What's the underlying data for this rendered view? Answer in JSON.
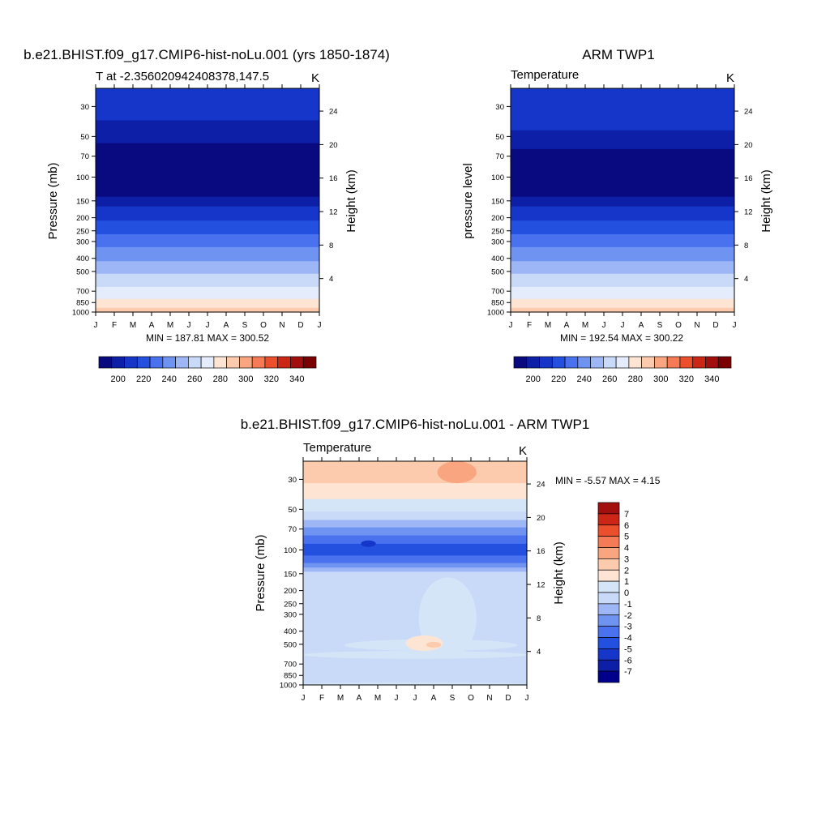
{
  "panels": [
    {
      "title": "b.e21.BHIST.f09_g17.CMIP6-hist-noLu.001 (yrs 1850-1874)",
      "left_label": "T at -2.356020942408378,147.5",
      "right_label": "K",
      "ylabel_left": "Pressure (mb)",
      "ylabel_right": "Height (km)",
      "minmax": "MIN = 187.81 MAX = 300.52",
      "colorbar_ticks": [
        "200",
        "220",
        "240",
        "260",
        "280",
        "300",
        "320",
        "340"
      ]
    },
    {
      "title": "ARM TWP1",
      "left_label": "Temperature",
      "right_label": "K",
      "ylabel_left": "pressure level",
      "ylabel_right": "Height (km)",
      "minmax": "MIN = 192.54 MAX = 300.22",
      "colorbar_ticks": [
        "200",
        "220",
        "240",
        "260",
        "280",
        "300",
        "320",
        "340"
      ]
    },
    {
      "title": "b.e21.BHIST.f09_g17.CMIP6-hist-noLu.001 - ARM TWP1",
      "left_label": "Temperature",
      "right_label": "K",
      "ylabel_left": "Pressure (mb)",
      "ylabel_right": "Height (km)",
      "minmax": "MIN =  -5.57 MAX =   4.15",
      "colorbar_ticks": [
        "7",
        "6",
        "5",
        "4",
        "3",
        "2",
        "1",
        "0",
        "-1",
        "-2",
        "-3",
        "-4",
        "-5",
        "-6",
        "-7"
      ]
    }
  ],
  "chart_data": [
    {
      "type": "heatmap",
      "x": [
        "J",
        "F",
        "M",
        "A",
        "M",
        "J",
        "J",
        "A",
        "S",
        "O",
        "N",
        "D",
        "J"
      ],
      "pressure_ticks": [
        "30",
        "50",
        "70",
        "100",
        "150",
        "200",
        "250",
        "300",
        "400",
        "500",
        "700",
        "850",
        "1000"
      ],
      "height_ticks": [
        "24",
        "20",
        "16",
        "12",
        "8",
        "4"
      ],
      "ylim": [
        1000,
        22
      ],
      "field": "temperature",
      "units": "K",
      "min": 187.81,
      "max": 300.52,
      "bands_top_to_bottom": [
        {
          "p_top": 22,
          "p_bottom": 38,
          "value": 215
        },
        {
          "p_top": 38,
          "p_bottom": 56,
          "value": 205
        },
        {
          "p_top": 56,
          "p_bottom": 140,
          "value": 192
        },
        {
          "p_top": 140,
          "p_bottom": 165,
          "value": 205
        },
        {
          "p_top": 165,
          "p_bottom": 210,
          "value": 215
        },
        {
          "p_top": 210,
          "p_bottom": 265,
          "value": 225
        },
        {
          "p_top": 265,
          "p_bottom": 330,
          "value": 235
        },
        {
          "p_top": 330,
          "p_bottom": 420,
          "value": 245
        },
        {
          "p_top": 420,
          "p_bottom": 520,
          "value": 255
        },
        {
          "p_top": 520,
          "p_bottom": 650,
          "value": 265
        },
        {
          "p_top": 650,
          "p_bottom": 800,
          "value": 275
        },
        {
          "p_top": 800,
          "p_bottom": 930,
          "value": 285
        },
        {
          "p_top": 930,
          "p_bottom": 1000,
          "value": 295
        }
      ]
    },
    {
      "type": "heatmap",
      "x": [
        "J",
        "F",
        "M",
        "A",
        "M",
        "J",
        "J",
        "A",
        "S",
        "O",
        "N",
        "D",
        "J"
      ],
      "pressure_ticks": [
        "30",
        "50",
        "70",
        "100",
        "150",
        "200",
        "250",
        "300",
        "400",
        "500",
        "700",
        "850",
        "1000"
      ],
      "height_ticks": [
        "24",
        "20",
        "16",
        "12",
        "8",
        "4"
      ],
      "ylim": [
        1000,
        22
      ],
      "field": "temperature",
      "units": "K",
      "min": 192.54,
      "max": 300.22,
      "bands_top_to_bottom": [
        {
          "p_top": 22,
          "p_bottom": 45,
          "value": 215
        },
        {
          "p_top": 45,
          "p_bottom": 62,
          "value": 205
        },
        {
          "p_top": 62,
          "p_bottom": 140,
          "value": 192
        },
        {
          "p_top": 140,
          "p_bottom": 165,
          "value": 205
        },
        {
          "p_top": 165,
          "p_bottom": 210,
          "value": 215
        },
        {
          "p_top": 210,
          "p_bottom": 265,
          "value": 225
        },
        {
          "p_top": 265,
          "p_bottom": 330,
          "value": 235
        },
        {
          "p_top": 330,
          "p_bottom": 420,
          "value": 245
        },
        {
          "p_top": 420,
          "p_bottom": 520,
          "value": 255
        },
        {
          "p_top": 520,
          "p_bottom": 650,
          "value": 265
        },
        {
          "p_top": 650,
          "p_bottom": 800,
          "value": 275
        },
        {
          "p_top": 800,
          "p_bottom": 930,
          "value": 285
        },
        {
          "p_top": 930,
          "p_bottom": 1000,
          "value": 295
        }
      ]
    },
    {
      "type": "heatmap",
      "x": [
        "J",
        "F",
        "M",
        "A",
        "M",
        "J",
        "J",
        "A",
        "S",
        "O",
        "N",
        "D",
        "J"
      ],
      "pressure_ticks": [
        "30",
        "50",
        "70",
        "100",
        "150",
        "200",
        "250",
        "300",
        "400",
        "500",
        "700",
        "850",
        "1000"
      ],
      "height_ticks": [
        "24",
        "20",
        "16",
        "12",
        "8",
        "4"
      ],
      "ylim": [
        1000,
        22
      ],
      "field": "temperature difference",
      "units": "K",
      "min": -5.57,
      "max": 4.15,
      "bands_top_to_bottom": [
        {
          "p_top": 22,
          "p_bottom": 32,
          "value": 2.5
        },
        {
          "p_top": 32,
          "p_bottom": 42,
          "value": 1.5
        },
        {
          "p_top": 42,
          "p_bottom": 52,
          "value": 0.5
        },
        {
          "p_top": 52,
          "p_bottom": 60,
          "value": -0.5
        },
        {
          "p_top": 60,
          "p_bottom": 68,
          "value": -1.5
        },
        {
          "p_top": 68,
          "p_bottom": 78,
          "value": -2.5
        },
        {
          "p_top": 78,
          "p_bottom": 90,
          "value": -3.5
        },
        {
          "p_top": 90,
          "p_bottom": 110,
          "value": -4.5
        },
        {
          "p_top": 110,
          "p_bottom": 125,
          "value": -3.5
        },
        {
          "p_top": 125,
          "p_bottom": 135,
          "value": -2.5
        },
        {
          "p_top": 135,
          "p_bottom": 145,
          "value": -1.5
        },
        {
          "p_top": 145,
          "p_bottom": 1000,
          "value": -0.5
        }
      ],
      "features": [
        {
          "x": [
            6.2,
            9.3
          ],
          "p": [
            160,
            640
          ],
          "value": 0.5
        },
        {
          "x": [
            2.2,
            11.5
          ],
          "p": [
            460,
            560
          ],
          "value": 0.5
        },
        {
          "x": [
            0,
            12
          ],
          "p": [
            560,
            640
          ],
          "value": 0.5
        },
        {
          "x": [
            5.5,
            7.5
          ],
          "p": [
            430,
            560
          ],
          "value": 1.5
        },
        {
          "x": [
            6.6,
            7.4
          ],
          "p": [
            480,
            530
          ],
          "value": 2.5
        },
        {
          "x": [
            7.2,
            9.3
          ],
          "p": [
            22,
            32
          ],
          "value": 3.5
        },
        {
          "x": [
            3.1,
            3.9
          ],
          "p": [
            85,
            95
          ],
          "value": -5.5
        },
        {
          "x": [
            0,
            12
          ],
          "p": [
            960,
            1000
          ],
          "value": 0.5
        }
      ]
    }
  ],
  "colorscales": {
    "temperature": {
      "levels": [
        200,
        210,
        220,
        230,
        240,
        250,
        260,
        270,
        280,
        290,
        300,
        310,
        320,
        330,
        340
      ],
      "colors": [
        "#0a0a80",
        "#0d1fa6",
        "#1536c8",
        "#2450e0",
        "#4a72ee",
        "#6f93f1",
        "#9db6f6",
        "#c9daf9",
        "#e5ecfb",
        "#fde4d3",
        "#fccbae",
        "#f9a680",
        "#f47b55",
        "#ec4f2c",
        "#cc2617",
        "#a30e0e",
        "#7a0000"
      ]
    },
    "temperature difference": {
      "levels": [
        -7,
        -6,
        -5,
        -4,
        -3,
        -2,
        -1,
        0,
        1,
        2,
        3,
        4,
        5,
        6,
        7
      ],
      "colors": [
        "#00008b",
        "#0d1fa6",
        "#1536c8",
        "#2450e0",
        "#4a72ee",
        "#6f93f1",
        "#9db6f6",
        "#c9daf9",
        "#d5e5f8",
        "#fde4d3",
        "#fccbae",
        "#f9a680",
        "#f47b55",
        "#ec4f2c",
        "#cc2617",
        "#a30e0e"
      ]
    }
  },
  "panel_c_diff_levels": [
    "7",
    "6",
    "5",
    "4",
    "3",
    "2",
    "1",
    "0",
    "-1",
    "-2",
    "-3",
    "-4",
    "-5",
    "-6",
    "-7"
  ]
}
